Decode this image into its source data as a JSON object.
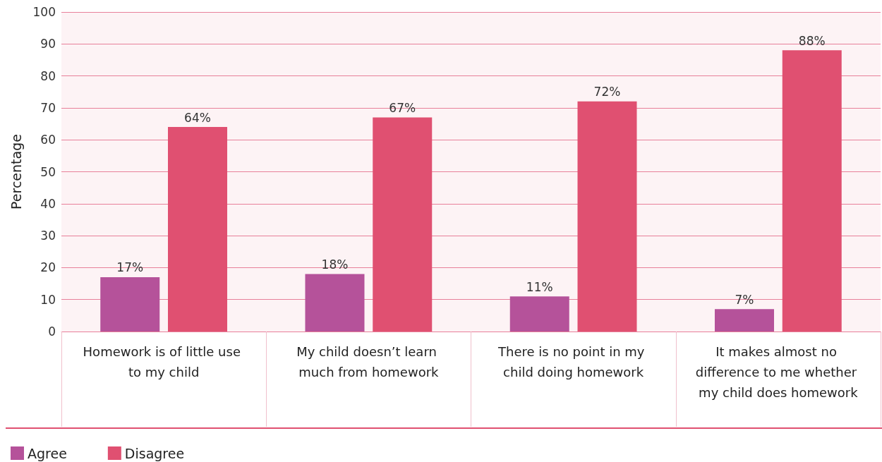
{
  "chart_data": {
    "type": "bar",
    "ylabel": "Percentage",
    "categories": [
      "Homework is of little use to my child",
      "My child doesn’t learn much from homework",
      "There is no point in my child doing homework",
      "It makes almost no difference to me whether my child does homework"
    ],
    "series": [
      {
        "name": "Agree",
        "color": "#b5529a",
        "values": [
          17,
          18,
          11,
          7
        ],
        "value_labels": [
          "17%",
          "18%",
          "11%",
          "7%"
        ]
      },
      {
        "name": "Disagree",
        "color": "#e05071",
        "values": [
          64,
          67,
          72,
          88
        ],
        "value_labels": [
          "64%",
          "67%",
          "72%",
          "88%"
        ]
      }
    ],
    "ylim": [
      0,
      100
    ],
    "yticks": [
      0,
      10,
      20,
      30,
      40,
      50,
      60,
      70,
      80,
      90,
      100
    ],
    "grid": "y",
    "legend": "bottom left"
  }
}
